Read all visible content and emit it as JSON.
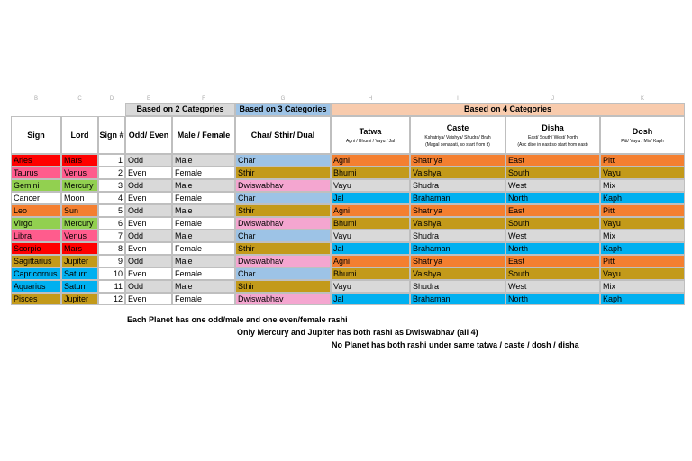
{
  "column_letters": [
    "B",
    "C",
    "D",
    "E",
    "F",
    "G",
    "H",
    "I",
    "J",
    "K"
  ],
  "group_headers": {
    "two": "Based on 2 Categories",
    "three": "Based on 3 Categories",
    "four": "Based on 4 Categories"
  },
  "headers": [
    {
      "title": "Sign"
    },
    {
      "title": "Lord"
    },
    {
      "title": "Sign #"
    },
    {
      "title": "Odd/ Even"
    },
    {
      "title": "Male / Female"
    },
    {
      "title": "Char/ Sthir/ Dual"
    },
    {
      "title": "Tatwa",
      "sub": [
        "Agni / Bhumi / Vayu / Jal"
      ]
    },
    {
      "title": "Caste",
      "sub": [
        "Kshatriya/ Vaishya/ Shudra/ Brah",
        "(Magal senapati, so start from it)"
      ]
    },
    {
      "title": "Disha",
      "sub": [
        "East/ South/ West/ North",
        "(Asc dise in east so start from east)"
      ]
    },
    {
      "title": "Dosh",
      "sub": [
        "Pitt/ Vayu / Mix/ Kaph"
      ]
    }
  ],
  "rows": [
    [
      "Aries",
      "Mars",
      1,
      "Odd",
      "Male",
      "Char",
      "Agni",
      "Shatriya",
      "East",
      "Pitt"
    ],
    [
      "Taurus",
      "Venus",
      2,
      "Even",
      "Female",
      "Sthir",
      "Bhumi",
      "Vaishya",
      "South",
      "Vayu"
    ],
    [
      "Gemini",
      "Mercury",
      3,
      "Odd",
      "Male",
      "Dwiswabhav",
      "Vayu",
      "Shudra",
      "West",
      "Mix"
    ],
    [
      "Cancer",
      "Moon",
      4,
      "Even",
      "Female",
      "Char",
      "Jal",
      "Brahaman",
      "North",
      "Kaph"
    ],
    [
      "Leo",
      "Sun",
      5,
      "Odd",
      "Male",
      "Sthir",
      "Agni",
      "Shatriya",
      "East",
      "Pitt"
    ],
    [
      "Virgo",
      "Mercury",
      6,
      "Even",
      "Female",
      "Dwiswabhav",
      "Bhumi",
      "Vaishya",
      "South",
      "Vayu"
    ],
    [
      "Libra",
      "Venus",
      7,
      "Odd",
      "Male",
      "Char",
      "Vayu",
      "Shudra",
      "West",
      "Mix"
    ],
    [
      "Scorpio",
      "Mars",
      8,
      "Even",
      "Female",
      "Sthir",
      "Jal",
      "Brahaman",
      "North",
      "Kaph"
    ],
    [
      "Sagittarius",
      "Jupiter",
      9,
      "Odd",
      "Male",
      "Dwiswabhav",
      "Agni",
      "Shatriya",
      "East",
      "Pitt"
    ],
    [
      "Capricornus",
      "Saturn",
      10,
      "Even",
      "Female",
      "Char",
      "Bhumi",
      "Vaishya",
      "South",
      "Vayu"
    ],
    [
      "Aquarius",
      "Saturn",
      11,
      "Odd",
      "Male",
      "Sthir",
      "Vayu",
      "Shudra",
      "West",
      "Mix"
    ],
    [
      "Pisces",
      "Jupiter",
      12,
      "Even",
      "Female",
      "Dwiswabhav",
      "Jal",
      "Brahaman",
      "North",
      "Kaph"
    ]
  ],
  "lord_colors": [
    "#ff0000",
    "#ff5c8d",
    "#92d050",
    "#ffffff",
    "#f47f30",
    "#92d050",
    "#ff5c8d",
    "#ff0000",
    "#c39a1a",
    "#00b0f0",
    "#00b0f0",
    "#c39a1a"
  ],
  "notes": [
    "Each Planet has one odd/male and one even/female rashi",
    "Only Mercury and Jupiter has both rashi as Dwiswabhav (all 4)",
    "No Planet has both rashi under same tatwa / caste / dosh / disha"
  ]
}
